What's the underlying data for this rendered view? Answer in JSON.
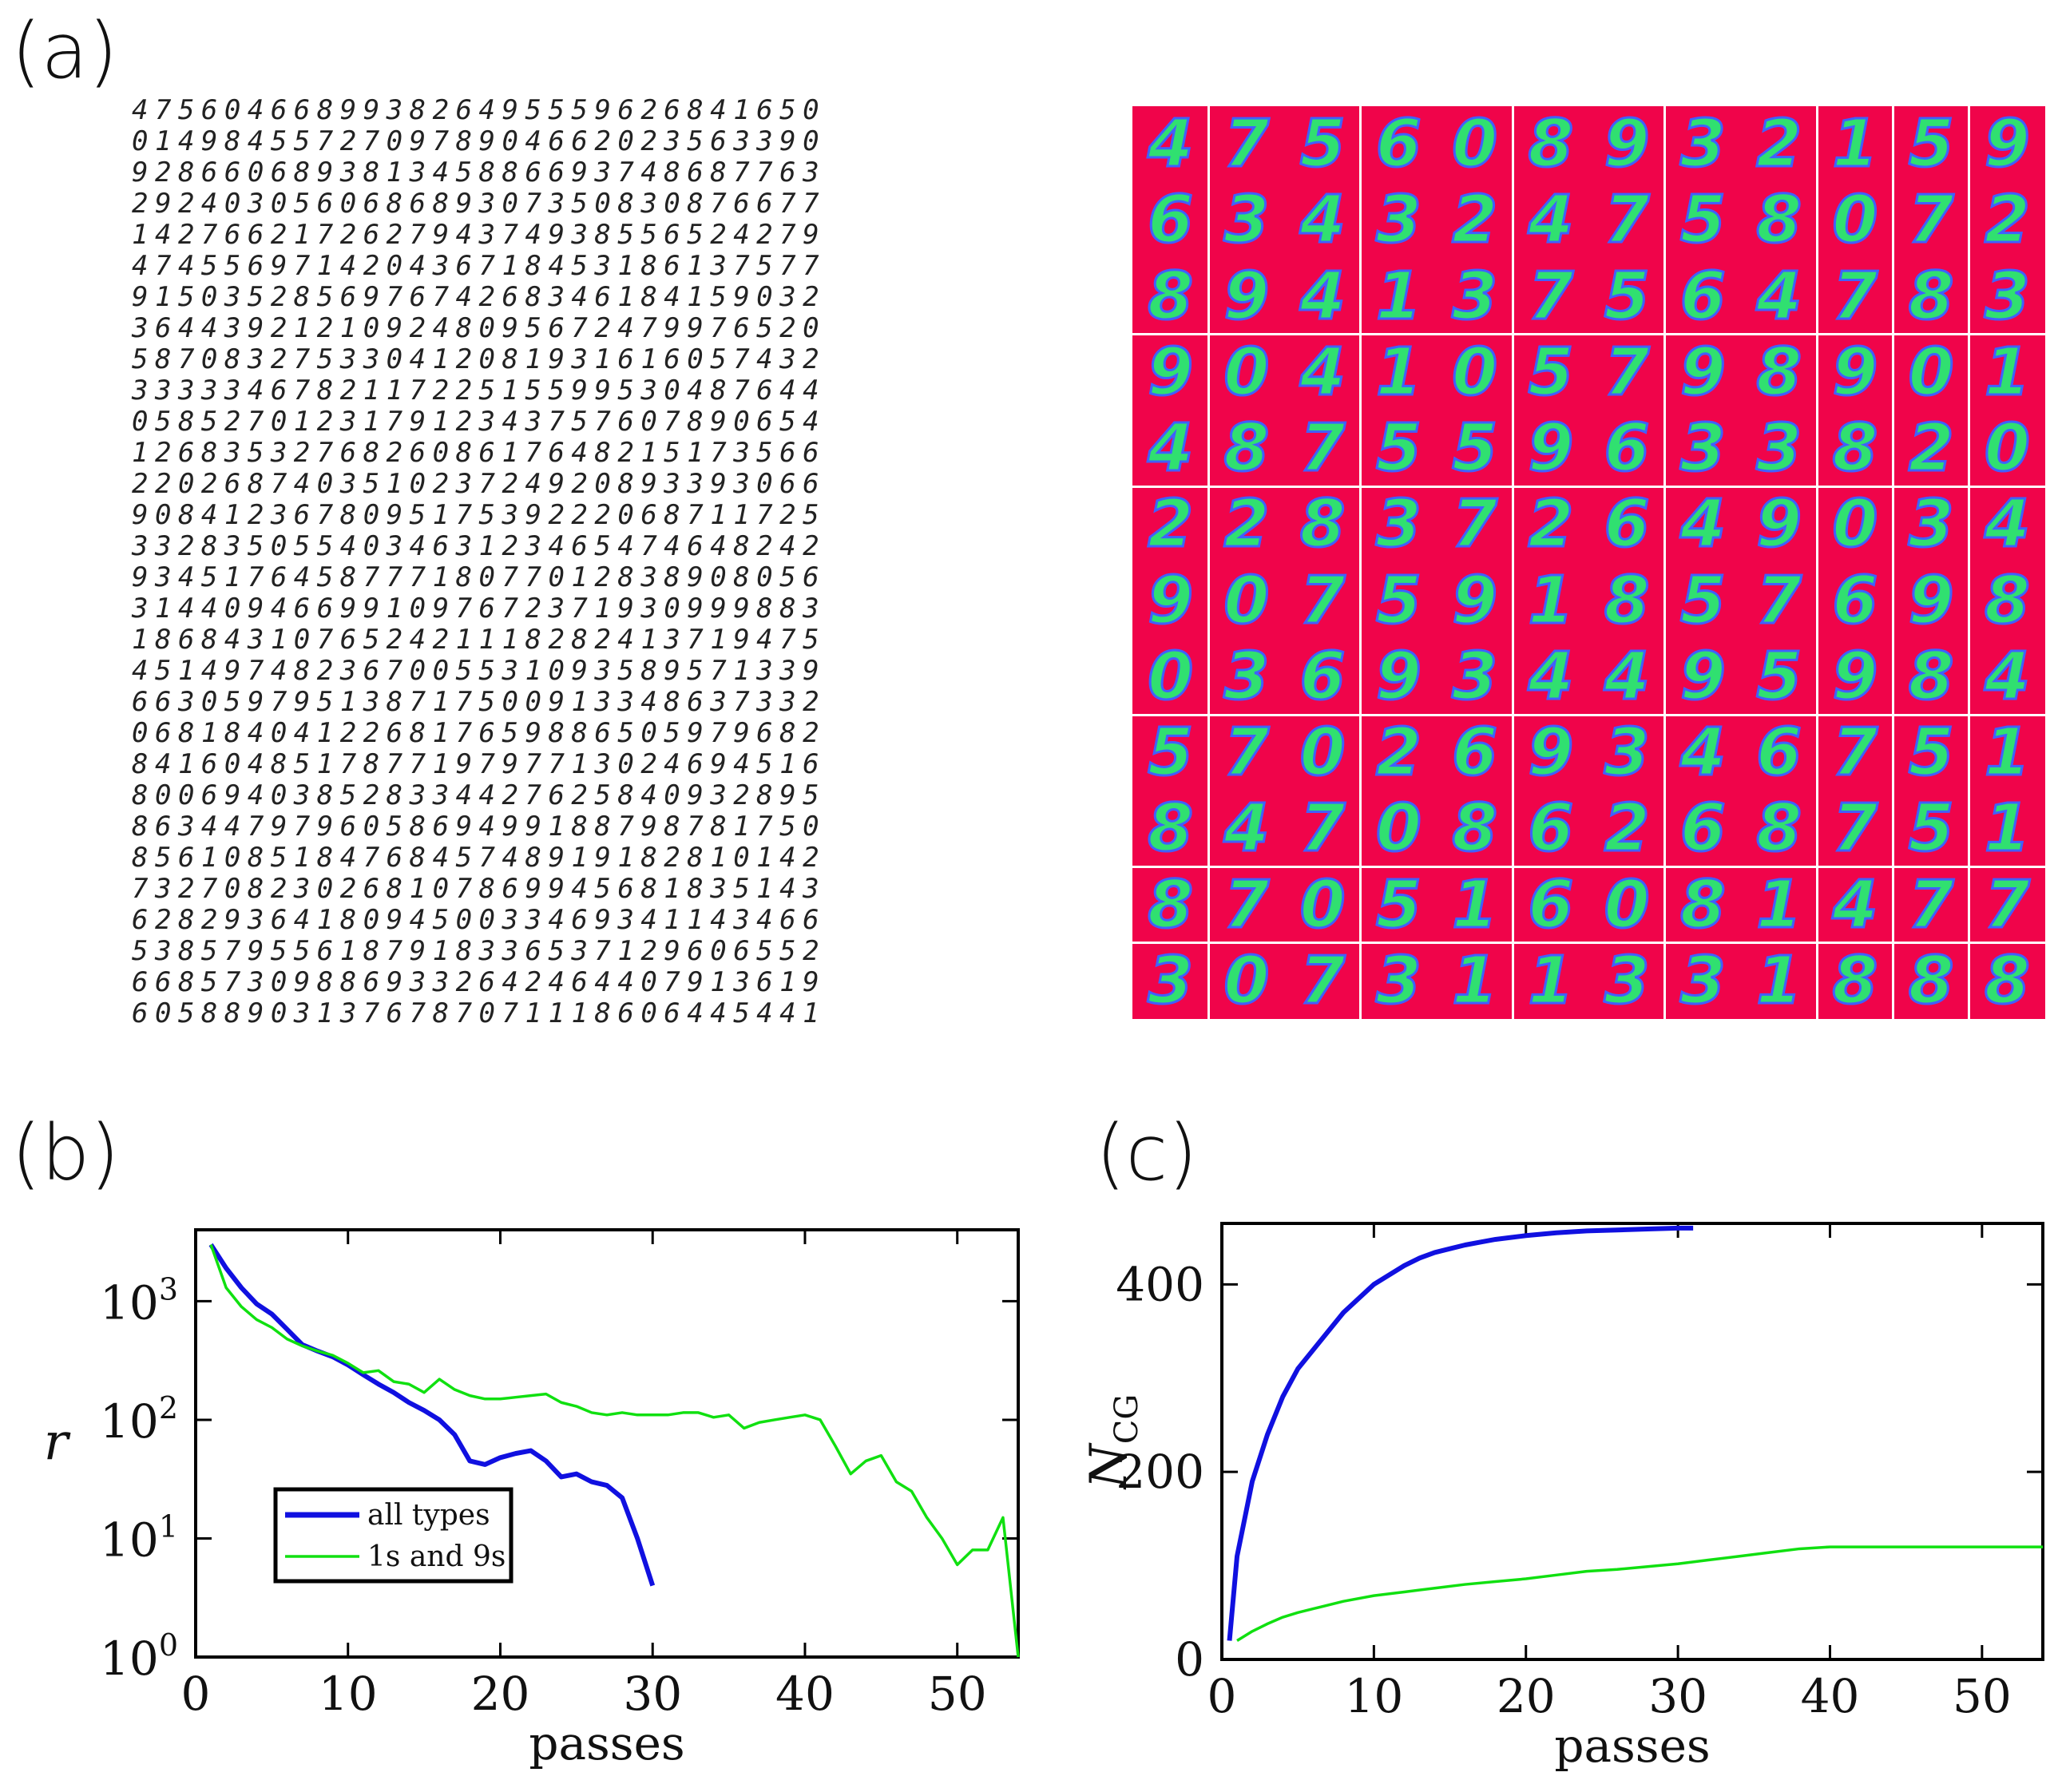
{
  "panels": {
    "a": "(a)",
    "b": "(b)",
    "c": "(c)"
  },
  "colors": {
    "blue": "#1010e0",
    "green": "#10e010",
    "magenta_bg": "#f0044a"
  },
  "digit_grid_left": [
    "475604668993826495559626841650",
    "014984557270978904662023563390",
    "928660689381345886693748687763",
    "292403056068689307350830876677",
    "142766217262794374938556524279",
    "474556971420436718453186137577",
    "915035285697674268346184159032",
    "364439212109248095672479976520",
    "587083275330412081931616057432",
    "333334678211722515599530487644",
    "058527012317912343757607890654",
    "126835327682608617648215173566",
    "220268740351023724920893393066",
    "908412367809517539222068711725",
    "332835055403463123465474648242",
    "934517645877718077012838908056",
    "314409466991097672371930999883",
    "186843107652421118282413719475",
    "451497482367005531093589571339",
    "663059795138717500913348637332",
    "068184041226817659886505979682",
    "841604851787719797713024694516",
    "800694038528334427625840932895",
    "863447979605869499188798781750",
    "856108518476845748919182810142",
    "732708230268107869945681835143",
    "628293641809450033469341143466",
    "538579556187918336537129606552",
    "668573098869332642464407913619",
    "605889031376787071118606445441"
  ],
  "digit_grid_right": [
    [
      "4",
      "7",
      "5",
      "6",
      "0",
      "8",
      "9",
      "3",
      "2",
      "1",
      "5",
      "9"
    ],
    [
      "6",
      "3",
      "4",
      "3",
      "2",
      "4",
      "7",
      "5",
      "8",
      "0",
      "7",
      "2"
    ],
    [
      "8",
      "9",
      "4",
      "1",
      "3",
      "7",
      "5",
      "6",
      "4",
      "7",
      "8",
      "3"
    ],
    [
      "9",
      "0",
      "4",
      "1",
      "0",
      "5",
      "7",
      "9",
      "8",
      "9",
      "0",
      "1"
    ],
    [
      "4",
      "8",
      "7",
      "5",
      "5",
      "9",
      "6",
      "3",
      "3",
      "8",
      "2",
      "0"
    ],
    [
      "2",
      "2",
      "8",
      "3",
      "7",
      "2",
      "6",
      "4",
      "9",
      "0",
      "3",
      "4"
    ],
    [
      "9",
      "0",
      "7",
      "5",
      "9",
      "1",
      "8",
      "5",
      "7",
      "6",
      "9",
      "8"
    ],
    [
      "0",
      "3",
      "6",
      "9",
      "3",
      "4",
      "4",
      "9",
      "5",
      "9",
      "8",
      "4"
    ],
    [
      "5",
      "7",
      "0",
      "2",
      "6",
      "9",
      "3",
      "4",
      "6",
      "7",
      "5",
      "1"
    ],
    [
      "8",
      "4",
      "7",
      "0",
      "8",
      "6",
      "2",
      "6",
      "8",
      "7",
      "5",
      "1"
    ],
    [
      "8",
      "7",
      "0",
      "5",
      "1",
      "6",
      "0",
      "8",
      "1",
      "4",
      "7",
      "7"
    ],
    [
      "3",
      "0",
      "7",
      "3",
      "1",
      "1",
      "3",
      "3",
      "1",
      "8",
      "8",
      "8"
    ]
  ],
  "chart_data": [
    {
      "id": "b",
      "type": "line",
      "xlabel": "passes",
      "ylabel": "r",
      "yscale": "log",
      "xlim": [
        0,
        54
      ],
      "ylim": [
        1,
        4000
      ],
      "xticks": [
        "0",
        "10",
        "20",
        "30",
        "40",
        "50"
      ],
      "yticks": [
        {
          "base": "10",
          "exp": "0"
        },
        {
          "base": "10",
          "exp": "1"
        },
        {
          "base": "10",
          "exp": "2"
        },
        {
          "base": "10",
          "exp": "3"
        }
      ],
      "legend": [
        "all types",
        "1s and 9s"
      ],
      "legend_position": "bottom-left",
      "series": [
        {
          "name": "all types",
          "color": "#1010e0",
          "x": [
            1,
            2,
            3,
            4,
            5,
            6,
            7,
            8,
            9,
            10,
            11,
            12,
            13,
            14,
            15,
            16,
            17,
            18,
            19,
            20,
            21,
            22,
            23,
            24,
            25,
            26,
            27,
            28,
            29,
            30
          ],
          "y": [
            3000,
            1900,
            1300,
            950,
            780,
            580,
            430,
            380,
            340,
            290,
            240,
            200,
            170,
            140,
            120,
            100,
            75,
            45,
            42,
            48,
            52,
            55,
            45,
            33,
            35,
            30,
            28,
            22,
            10,
            4
          ]
        },
        {
          "name": "1s and 9s",
          "color": "#10e010",
          "x": [
            1,
            2,
            3,
            4,
            5,
            6,
            7,
            8,
            9,
            10,
            11,
            12,
            13,
            14,
            15,
            16,
            17,
            18,
            19,
            20,
            21,
            22,
            23,
            24,
            25,
            26,
            27,
            28,
            29,
            30,
            31,
            32,
            33,
            34,
            35,
            36,
            37,
            38,
            39,
            40,
            41,
            42,
            43,
            44,
            45,
            46,
            47,
            48,
            49,
            50,
            51,
            52,
            53,
            54
          ],
          "y": [
            3000,
            1300,
            900,
            700,
            600,
            480,
            420,
            380,
            350,
            300,
            250,
            260,
            210,
            200,
            170,
            220,
            180,
            160,
            150,
            150,
            155,
            160,
            165,
            140,
            130,
            115,
            110,
            115,
            110,
            110,
            110,
            115,
            115,
            105,
            110,
            85,
            95,
            100,
            105,
            110,
            100,
            60,
            35,
            45,
            50,
            30,
            25,
            15,
            10,
            6,
            8,
            8,
            15,
            1
          ]
        }
      ]
    },
    {
      "id": "c",
      "type": "line",
      "xlabel": "passes",
      "ylabel": "N",
      "ylabel_sub": "CG",
      "xlim": [
        0,
        54
      ],
      "ylim": [
        0,
        465
      ],
      "xticks": [
        "0",
        "10",
        "20",
        "30",
        "40",
        "50"
      ],
      "yticks": [
        "0",
        "200",
        "400"
      ],
      "series": [
        {
          "name": "all types",
          "color": "#1010e0",
          "x": [
            0.5,
            1,
            2,
            3,
            4,
            5,
            6,
            7,
            8,
            9,
            10,
            11,
            12,
            13,
            14,
            15,
            16,
            17,
            18,
            19,
            20,
            22,
            24,
            26,
            28,
            30,
            31
          ],
          "y": [
            20,
            110,
            190,
            240,
            280,
            310,
            330,
            350,
            370,
            385,
            400,
            410,
            420,
            428,
            434,
            438,
            442,
            445,
            448,
            450,
            452,
            455,
            457,
            458,
            459,
            460,
            460
          ]
        },
        {
          "name": "1s and 9s",
          "color": "#10e010",
          "x": [
            1,
            2,
            3,
            4,
            5,
            6,
            8,
            10,
            12,
            14,
            16,
            18,
            20,
            22,
            24,
            26,
            28,
            30,
            32,
            34,
            36,
            38,
            40,
            42,
            44,
            46,
            48,
            50,
            52,
            54
          ],
          "y": [
            20,
            30,
            38,
            45,
            50,
            54,
            62,
            68,
            72,
            76,
            80,
            83,
            86,
            90,
            94,
            96,
            99,
            102,
            106,
            110,
            114,
            118,
            120,
            120,
            120,
            120,
            120,
            120,
            120,
            120
          ]
        }
      ]
    }
  ]
}
